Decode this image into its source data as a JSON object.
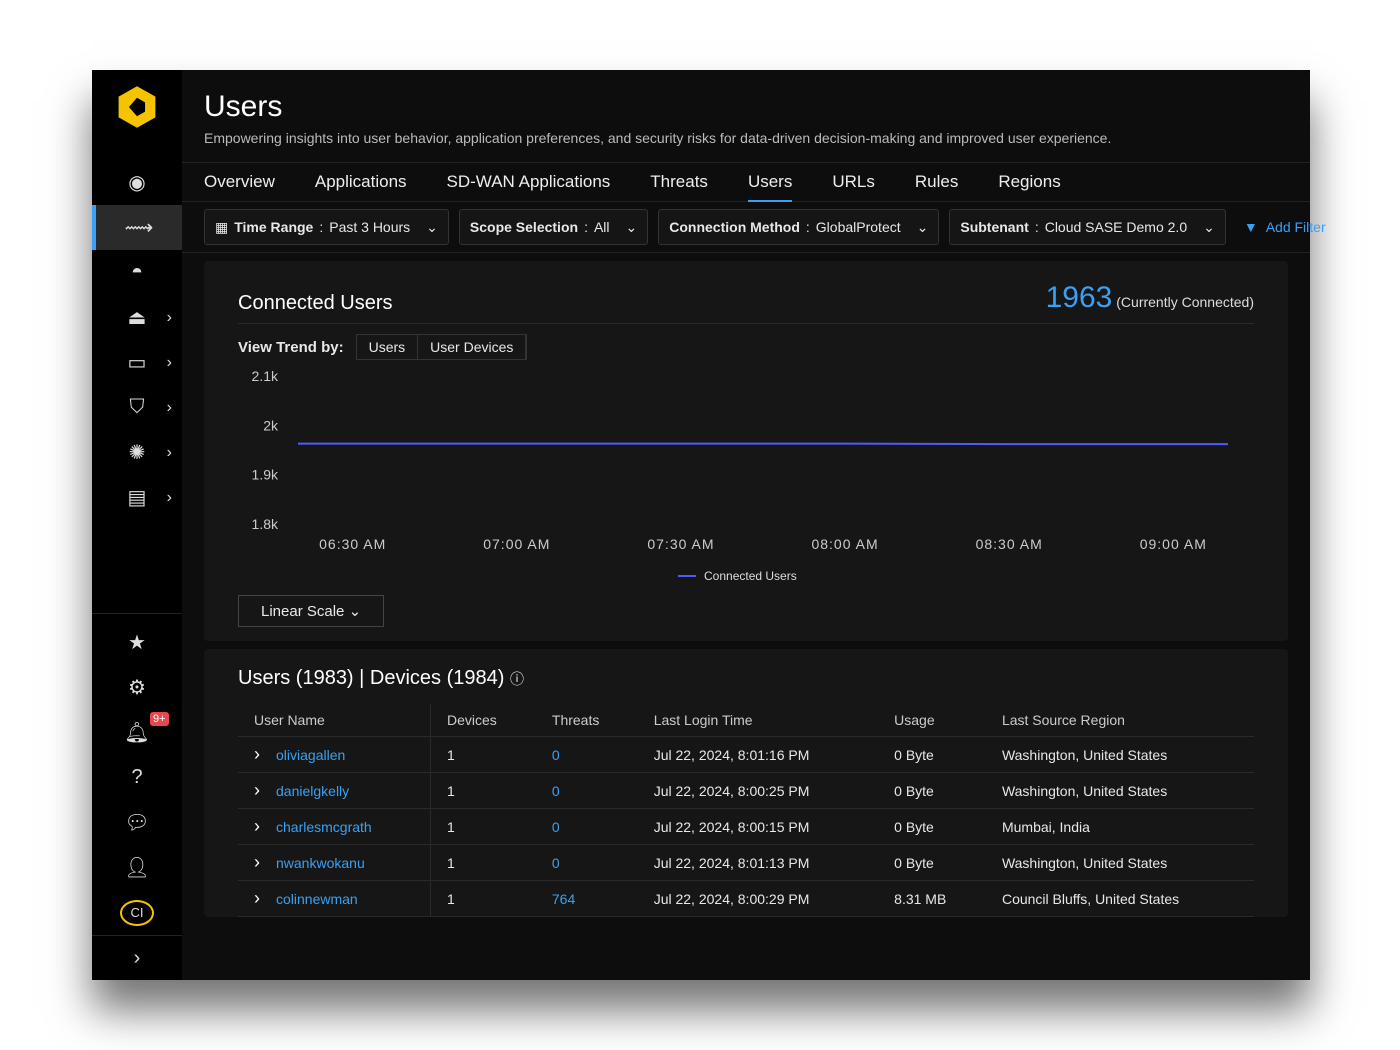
{
  "header": {
    "title": "Users",
    "subtitle": "Empowering insights into user behavior, application preferences, and security risks for data-driven decision-making and improved user experience."
  },
  "tabs": [
    "Overview",
    "Applications",
    "SD-WAN Applications",
    "Threats",
    "Users",
    "URLs",
    "Rules",
    "Regions"
  ],
  "active_tab": "Users",
  "filters": [
    {
      "label": "Time Range",
      "value": "Past 3 Hours"
    },
    {
      "label": "Scope Selection",
      "value": "All"
    },
    {
      "label": "Connection Method",
      "value": "GlobalProtect"
    },
    {
      "label": "Subtenant",
      "value": "Cloud SASE Demo 2.0"
    }
  ],
  "add_filter": "Add Filter",
  "sidebar": {
    "badge": "9+",
    "avatar": "CI"
  },
  "connected": {
    "title": "Connected Users",
    "count": "1963",
    "count_label": "(Currently Connected)",
    "view_trend": "View Trend by:",
    "trend_options": [
      "Users",
      "User Devices"
    ],
    "scale": "Linear Scale"
  },
  "chart_data": {
    "type": "line",
    "x": [
      "06:20 AM",
      "06:30 AM",
      "07:00 AM",
      "07:30 AM",
      "08:00 AM",
      "08:30 AM",
      "09:00 AM",
      "09:10 AM"
    ],
    "series": [
      {
        "name": "Connected Users",
        "values": [
          1963,
          1963,
          1963,
          1963,
          1963,
          1962,
          1962,
          1962
        ]
      }
    ],
    "xticks": [
      "06:30 AM",
      "07:00 AM",
      "07:30 AM",
      "08:00 AM",
      "08:30 AM",
      "09:00 AM"
    ],
    "yticks": [
      "2.1k",
      "2k",
      "1.9k",
      "1.8k"
    ],
    "ylim": [
      1800,
      2100
    ],
    "color": "#4f5bff",
    "legend": "bottom"
  },
  "table": {
    "title": "Users (1983) | Devices (1984)",
    "columns": [
      "User Name",
      "Devices",
      "Threats",
      "Last Login Time",
      "Usage",
      "Last Source Region"
    ],
    "rows": [
      [
        "oliviagallen",
        "1",
        "0",
        "Jul 22, 2024, 8:01:16 PM",
        "0 Byte",
        "Washington, United States"
      ],
      [
        "danielgkelly",
        "1",
        "0",
        "Jul 22, 2024, 8:00:25 PM",
        "0 Byte",
        "Washington, United States"
      ],
      [
        "charlesmcgrath",
        "1",
        "0",
        "Jul 22, 2024, 8:00:15 PM",
        "0 Byte",
        "Mumbai, India"
      ],
      [
        "nwankwokanu",
        "1",
        "0",
        "Jul 22, 2024, 8:01:13 PM",
        "0 Byte",
        "Washington, United States"
      ],
      [
        "colinnewman",
        "1",
        "764",
        "Jul 22, 2024, 8:00:29 PM",
        "8.31 MB",
        "Council Bluffs, United States"
      ]
    ]
  }
}
